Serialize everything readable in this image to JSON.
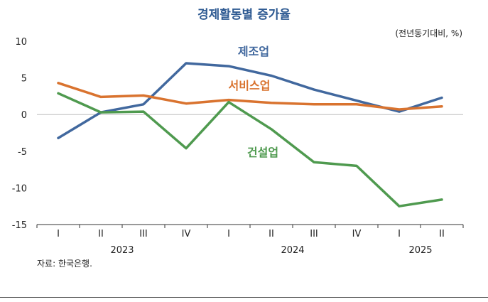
{
  "title": "경제활동별 증가율",
  "unit_note": "(전년동기대비, %)",
  "source_note": "자료: 한국은행.",
  "chart_data": {
    "type": "line",
    "categories": [
      "I",
      "II",
      "III",
      "IV",
      "I",
      "II",
      "III",
      "IV",
      "I",
      "II"
    ],
    "years": [
      {
        "label": "2023",
        "start": 0,
        "end": 3
      },
      {
        "label": "2024",
        "start": 4,
        "end": 7
      },
      {
        "label": "2025",
        "start": 8,
        "end": 9
      }
    ],
    "ylim": [
      -15,
      10
    ],
    "yticks": [
      10,
      5,
      0,
      -5,
      -10,
      -15
    ],
    "grid": false,
    "series": [
      {
        "name": "제조업",
        "color": "#41689e",
        "values": [
          -3.2,
          0.3,
          1.4,
          7.0,
          6.6,
          5.3,
          3.4,
          1.9,
          0.4,
          2.3
        ]
      },
      {
        "name": "서비스업",
        "color": "#d9732f",
        "values": [
          4.3,
          2.4,
          2.6,
          1.5,
          2.0,
          1.6,
          1.4,
          1.4,
          0.7,
          1.1
        ]
      },
      {
        "name": "건설업",
        "color": "#4f9a4f",
        "values": [
          2.9,
          0.3,
          0.4,
          -4.6,
          1.7,
          -2.0,
          -6.5,
          -7.0,
          -12.5,
          -11.6
        ]
      }
    ]
  }
}
